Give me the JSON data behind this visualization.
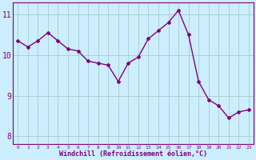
{
  "x": [
    0,
    1,
    2,
    3,
    4,
    5,
    6,
    7,
    8,
    9,
    10,
    11,
    12,
    13,
    14,
    15,
    16,
    17,
    18,
    19,
    20,
    21,
    22,
    23
  ],
  "y": [
    10.35,
    10.2,
    10.35,
    10.55,
    10.35,
    10.15,
    10.1,
    9.85,
    9.8,
    9.75,
    9.35,
    9.8,
    9.95,
    10.4,
    10.6,
    10.8,
    11.1,
    10.5,
    9.35,
    8.9,
    8.75,
    8.45,
    8.6,
    8.65
  ],
  "line_color": "#800080",
  "marker": "D",
  "marker_size": 2.0,
  "bg_color": "#cceeff",
  "grid_color": "#aacccc",
  "xlabel": "Windchill (Refroidissement éolien,°C)",
  "xlabel_color": "#800080",
  "ylabel_ticks": [
    8,
    9,
    10,
    11
  ],
  "xtick_labels": [
    "0",
    "1",
    "2",
    "3",
    "4",
    "5",
    "6",
    "7",
    "8",
    "9",
    "10",
    "11",
    "12",
    "13",
    "14",
    "15",
    "16",
    "17",
    "18",
    "19",
    "20",
    "21",
    "22",
    "23"
  ],
  "xlim": [
    -0.5,
    23.5
  ],
  "ylim": [
    7.8,
    11.3
  ],
  "tick_color": "#800080",
  "spine_color": "#800080"
}
